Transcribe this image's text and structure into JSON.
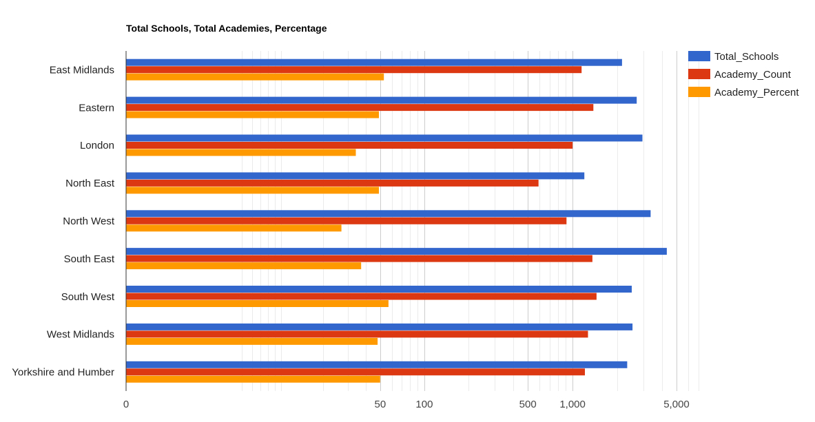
{
  "chart_data": {
    "type": "bar",
    "orientation": "horizontal",
    "title": "Total Schools, Total Academies, Percentage",
    "xlabel": "",
    "ylabel": "",
    "x_scale": "log",
    "xlim": [
      0,
      7000
    ],
    "grid": true,
    "legend_position": "right",
    "categories": [
      "East Midlands",
      "Eastern",
      "London",
      "North East",
      "North West",
      "South East",
      "South West",
      "West Midlands",
      "Yorkshire and Humber"
    ],
    "x_ticks": [
      {
        "value": 0,
        "label": "0"
      },
      {
        "value": 50,
        "label": "50"
      },
      {
        "value": 100,
        "label": "100"
      },
      {
        "value": 500,
        "label": "500"
      },
      {
        "value": 1000,
        "label": "1,000"
      },
      {
        "value": 5000,
        "label": "5,000"
      }
    ],
    "series": [
      {
        "name": "Total_Schools",
        "color": "#3366cc",
        "values": [
          2150,
          2700,
          2950,
          1200,
          3350,
          4300,
          2500,
          2530,
          2330
        ]
      },
      {
        "name": "Academy_Count",
        "color": "#dc3912",
        "values": [
          1150,
          1380,
          1000,
          590,
          910,
          1360,
          1450,
          1270,
          1210
        ]
      },
      {
        "name": "Academy_Percent",
        "color": "#ff9900",
        "values": [
          53,
          49,
          34,
          49,
          27,
          37,
          57,
          48,
          50
        ]
      }
    ]
  }
}
